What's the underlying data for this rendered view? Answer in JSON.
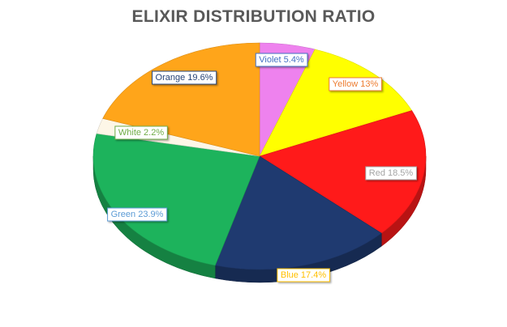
{
  "chart_data": {
    "type": "pie",
    "title": "ELIXIR DISTRIBUTION RATIO",
    "slices": [
      {
        "name": "Violet",
        "value": 5.4,
        "label": "Violet 5.4%",
        "color": "#ee82ee",
        "text_color": "#4472c4"
      },
      {
        "name": "Yellow",
        "value": 13,
        "label": "Yellow 13%",
        "color": "#ffff00",
        "text_color": "#ed7d31"
      },
      {
        "name": "Red",
        "value": 18.5,
        "label": "Red 18.5%",
        "color": "#ff1a1a",
        "text_color": "#a5a5a5"
      },
      {
        "name": "Blue",
        "value": 17.4,
        "label": "Blue 17.4%",
        "color": "#1f3a70",
        "text_color": "#ffc000"
      },
      {
        "name": "Green",
        "value": 23.9,
        "label": "Green 23.9%",
        "color": "#1db35c",
        "text_color": "#5b9bd5"
      },
      {
        "name": "White",
        "value": 2.2,
        "label": "White 2.2%",
        "color": "#fdf6e7",
        "text_color": "#70ad47"
      },
      {
        "name": "Orange",
        "value": 19.6,
        "label": "Orange 19.6%",
        "color": "#ffa51a",
        "text_color": "#264478"
      }
    ],
    "legend": "none",
    "style": "3d-pie"
  }
}
